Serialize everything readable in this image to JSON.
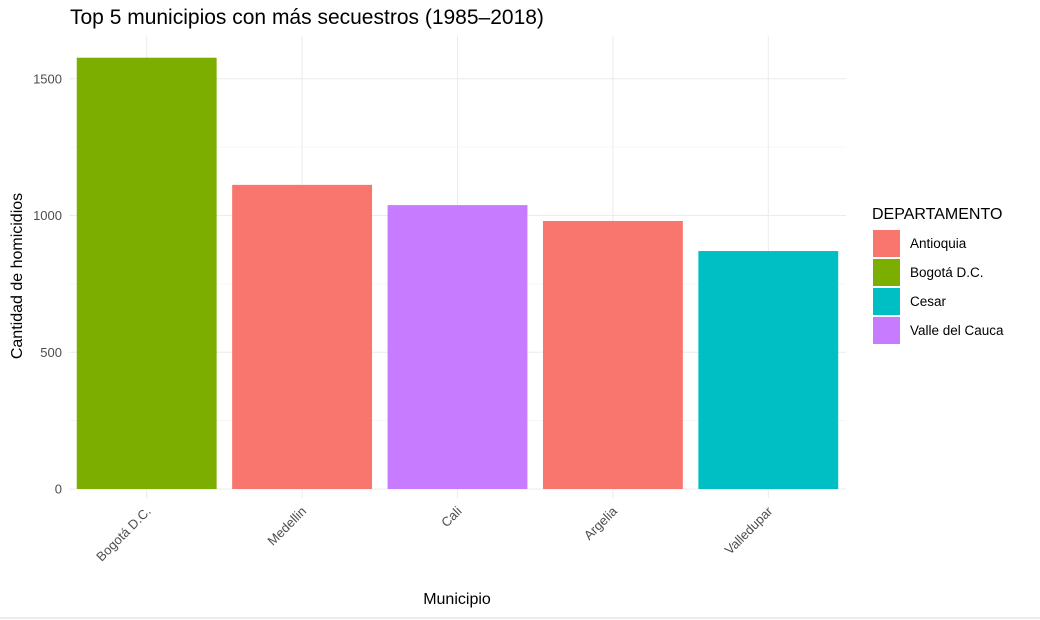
{
  "chart_data": {
    "type": "bar",
    "title": "Top 5 municipios con más secuestros (1985–2018)",
    "xlabel": "Municipio",
    "ylabel": "Cantidad de homicidios",
    "categories": [
      "Bogotá D.C.",
      "Medellin",
      "Cali",
      "Argelia",
      "Valledupar"
    ],
    "values": [
      1577,
      1112,
      1038,
      980,
      870
    ],
    "groups": [
      "Bogotá D.C.",
      "Antioquia",
      "Valle del Cauca",
      "Antioquia",
      "Cesar"
    ],
    "ylim": [
      0,
      1600
    ],
    "yticks": [
      0,
      500,
      1000,
      1500
    ],
    "grid": true,
    "legend": {
      "title": "DEPARTAMENTO",
      "placement": "right",
      "entries": [
        {
          "name": "Antioquia",
          "color": "#F8766D"
        },
        {
          "name": "Bogotá D.C.",
          "color": "#7CAE00"
        },
        {
          "name": "Cesar",
          "color": "#00BFC4"
        },
        {
          "name": "Valle del Cauca",
          "color": "#C77CFF"
        }
      ]
    }
  }
}
